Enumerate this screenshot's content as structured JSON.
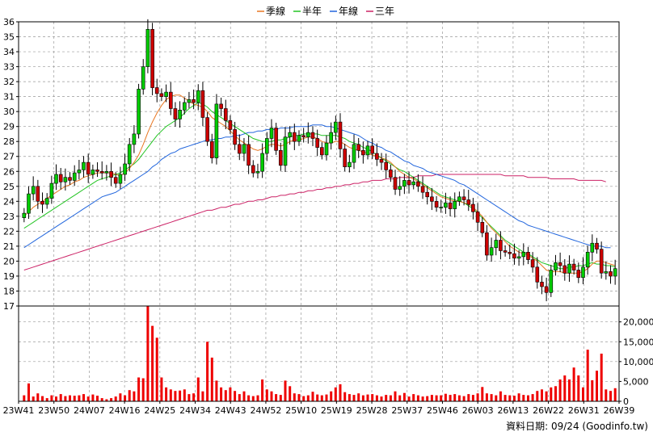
{
  "chart_data": {
    "type": "candlestick-with-volume",
    "legend": [
      {
        "name": "季線",
        "color": "#e87722"
      },
      {
        "name": "半年",
        "color": "#22c422"
      },
      {
        "name": "年線",
        "color": "#2266dd"
      },
      {
        "name": "三年",
        "color": "#cc2266"
      }
    ],
    "price_axis": {
      "min": 17,
      "max": 36,
      "ticks": [
        17,
        18,
        19,
        20,
        21,
        22,
        23,
        24,
        25,
        26,
        27,
        28,
        29,
        30,
        31,
        32,
        33,
        34,
        35,
        36
      ]
    },
    "volume_axis": {
      "min": 0,
      "max": 24000,
      "ticks": [
        0,
        5000,
        10000,
        15000,
        20000
      ],
      "tick_labels": [
        "0",
        "5,000",
        "10,000",
        "15,000",
        "20,000"
      ]
    },
    "x_tick_labels": [
      "23W41",
      "23W50",
      "24W07",
      "24W16",
      "24W25",
      "24W34",
      "24W43",
      "24W52",
      "25W10",
      "25W19",
      "25W28",
      "25W37",
      "25W46",
      "26W03",
      "26W13",
      "26W22",
      "26W31",
      "26W39"
    ],
    "grid": true,
    "legend_position": "top-center",
    "candle_up_color": "#00cc00",
    "candle_down_color": "#cc0000",
    "volume_color": "#ee0000",
    "closes": [
      23.2,
      24.5,
      25.0,
      24.0,
      23.8,
      24.2,
      25.2,
      25.8,
      25.3,
      25.6,
      25.4,
      25.9,
      26.1,
      26.6,
      25.8,
      26.1,
      26.0,
      25.9,
      26.0,
      25.6,
      25.2,
      25.8,
      26.5,
      27.8,
      28.5,
      31.5,
      33.0,
      35.5,
      31.6,
      31.2,
      31.0,
      31.3,
      30.2,
      29.5,
      30.1,
      30.6,
      30.8,
      30.6,
      31.4,
      29.6,
      28.0,
      26.9,
      30.5,
      30.2,
      29.4,
      28.8,
      27.8,
      27.2,
      27.8,
      26.4,
      25.9,
      26.0,
      27.2,
      28.2,
      28.9,
      27.4,
      26.4,
      28.3,
      28.6,
      28.0,
      28.4,
      28.3,
      28.6,
      28.2,
      27.6,
      27.1,
      27.9,
      28.6,
      29.3,
      27.5,
      26.3,
      26.6,
      27.8,
      27.4,
      27.1,
      27.7,
      27.2,
      26.8,
      26.6,
      26.1,
      25.6,
      24.8,
      25.0,
      25.4,
      25.1,
      25.3,
      25.0,
      24.6,
      24.3,
      24.0,
      23.6,
      23.6,
      23.9,
      23.5,
      24.0,
      24.3,
      24.1,
      23.8,
      23.3,
      22.6,
      21.9,
      20.4,
      20.9,
      21.4,
      20.7,
      20.6,
      20.5,
      20.2,
      20.3,
      20.6,
      20.1,
      19.6,
      18.6,
      18.3,
      17.9,
      19.4,
      19.9,
      19.7,
      19.2,
      19.8,
      19.4,
      18.9,
      19.6,
      20.6,
      21.2,
      20.8,
      19.2,
      19.3,
      19.0,
      19.5
    ],
    "quarter_line": [
      23.0,
      23.3,
      23.6,
      23.8,
      24.0,
      24.2,
      24.4,
      24.6,
      24.8,
      25.0,
      25.1,
      25.3,
      25.4,
      25.6,
      25.7,
      25.8,
      25.9,
      25.9,
      25.9,
      25.9,
      25.8,
      25.7,
      25.9,
      26.2,
      26.6,
      27.1,
      27.8,
      28.6,
      29.3,
      29.9,
      30.4,
      30.8,
      31.0,
      31.1,
      31.1,
      30.9,
      30.7,
      30.5,
      30.4,
      30.3,
      30.0,
      29.6,
      29.4,
      29.2,
      29.0,
      28.7,
      28.4,
      28.1,
      27.9,
      27.7,
      27.5,
      27.4,
      27.5,
      27.7,
      27.8,
      27.8,
      27.7,
      27.8,
      28.0,
      28.1,
      28.1,
      28.2,
      28.3,
      28.3,
      28.2,
      28.0,
      27.9,
      27.9,
      28.0,
      28.0,
      27.8,
      27.6,
      27.5,
      27.4,
      27.3,
      27.2,
      27.1,
      27.0,
      26.9,
      26.8,
      26.6,
      26.3,
      26.0,
      25.8,
      25.6,
      25.5,
      25.3,
      25.1,
      24.9,
      24.7,
      24.5,
      24.3,
      24.2,
      24.1,
      24.0,
      24.0,
      23.9,
      23.8,
      23.6,
      23.3,
      23.0,
      22.6,
      22.2,
      21.9,
      21.6,
      21.3,
      21.0,
      20.8,
      20.6,
      20.5,
      20.4,
      20.2,
      20.0,
      19.7,
      19.4,
      19.3,
      19.3,
      19.3,
      19.2,
      19.2,
      19.2,
      19.2,
      19.3,
      19.5,
      19.8,
      20.0,
      20.0,
      19.9,
      19.8,
      19.7
    ],
    "half_year_line": [
      22.2,
      22.4,
      22.6,
      22.8,
      23.0,
      23.2,
      23.4,
      23.6,
      23.8,
      24.0,
      24.2,
      24.4,
      24.6,
      24.8,
      25.0,
      25.2,
      25.4,
      25.5,
      25.6,
      25.7,
      25.8,
      25.9,
      26.1,
      26.3,
      26.5,
      26.8,
      27.2,
      27.6,
      28.0,
      28.4,
      28.7,
      29.0,
      29.2,
      29.4,
      29.6,
      29.9,
      30.2,
      30.4,
      30.6,
      30.5,
      30.3,
      30.0,
      29.8,
      29.6,
      29.4,
      29.2,
      29.0,
      28.8,
      28.6,
      28.4,
      28.2,
      28.1,
      28.0,
      28.0,
      28.0,
      28.1,
      28.1,
      28.2,
      28.3,
      28.4,
      28.4,
      28.5,
      28.5,
      28.5,
      28.5,
      28.4,
      28.4,
      28.4,
      28.4,
      28.3,
      28.2,
      28.0,
      27.9,
      27.8,
      27.6,
      27.5,
      27.3,
      27.1,
      26.9,
      26.7,
      26.5,
      26.3,
      26.1,
      26.0,
      25.8,
      25.6,
      25.4,
      25.2,
      25.0,
      24.8,
      24.6,
      24.4,
      24.3,
      24.2,
      24.1,
      24.0,
      23.9,
      23.7,
      23.5,
      23.2,
      22.9,
      22.6,
      22.3,
      22.0,
      21.7,
      21.4,
      21.2,
      21.0,
      20.8,
      20.6,
      20.5,
      20.3,
      20.1,
      19.9,
      19.8,
      19.7,
      19.6,
      19.5,
      19.5,
      19.6,
      19.6,
      19.7,
      19.7,
      19.8,
      19.9,
      19.8,
      19.8,
      19.7,
      19.7,
      19.6
    ],
    "year_line": [
      20.9,
      21.1,
      21.3,
      21.5,
      21.7,
      21.9,
      22.1,
      22.3,
      22.5,
      22.7,
      22.9,
      23.1,
      23.3,
      23.5,
      23.7,
      23.9,
      24.1,
      24.3,
      24.4,
      24.5,
      24.6,
      24.8,
      25.0,
      25.2,
      25.4,
      25.6,
      25.8,
      26.0,
      26.3,
      26.5,
      26.8,
      27.0,
      27.2,
      27.3,
      27.5,
      27.6,
      27.7,
      27.8,
      27.9,
      28.0,
      28.1,
      28.1,
      28.2,
      28.2,
      28.3,
      28.3,
      28.4,
      28.4,
      28.5,
      28.6,
      28.6,
      28.7,
      28.7,
      28.8,
      28.8,
      28.8,
      28.9,
      28.9,
      28.9,
      29.0,
      29.0,
      29.0,
      29.0,
      29.1,
      29.1,
      29.1,
      29.0,
      29.0,
      28.9,
      28.8,
      28.7,
      28.6,
      28.5,
      28.4,
      28.2,
      28.0,
      27.9,
      27.7,
      27.6,
      27.4,
      27.3,
      27.1,
      26.9,
      26.7,
      26.6,
      26.4,
      26.3,
      26.2,
      26.0,
      25.9,
      25.8,
      25.7,
      25.6,
      25.5,
      25.4,
      25.2,
      25.1,
      24.9,
      24.7,
      24.5,
      24.3,
      24.1,
      23.9,
      23.7,
      23.5,
      23.3,
      23.1,
      22.9,
      22.7,
      22.6,
      22.4,
      22.3,
      22.2,
      22.1,
      22.0,
      21.9,
      21.8,
      21.7,
      21.6,
      21.5,
      21.4,
      21.3,
      21.2,
      21.1,
      21.0,
      21.0,
      21.0,
      20.9,
      20.9
    ],
    "three_year_line": [
      19.4,
      19.5,
      19.6,
      19.7,
      19.8,
      19.9,
      20.0,
      20.1,
      20.2,
      20.3,
      20.4,
      20.5,
      20.6,
      20.7,
      20.8,
      20.9,
      21.0,
      21.1,
      21.2,
      21.3,
      21.4,
      21.5,
      21.6,
      21.7,
      21.8,
      21.9,
      22.0,
      22.1,
      22.2,
      22.3,
      22.4,
      22.5,
      22.6,
      22.7,
      22.8,
      22.9,
      23.0,
      23.1,
      23.2,
      23.3,
      23.4,
      23.4,
      23.5,
      23.6,
      23.6,
      23.7,
      23.8,
      23.8,
      23.9,
      24.0,
      24.0,
      24.1,
      24.1,
      24.2,
      24.3,
      24.3,
      24.4,
      24.4,
      24.5,
      24.5,
      24.6,
      24.6,
      24.7,
      24.7,
      24.8,
      24.8,
      24.9,
      24.9,
      25.0,
      25.0,
      25.1,
      25.1,
      25.2,
      25.2,
      25.3,
      25.3,
      25.4,
      25.4,
      25.4,
      25.5,
      25.5,
      25.5,
      25.6,
      25.6,
      25.6,
      25.6,
      25.7,
      25.7,
      25.7,
      25.7,
      25.8,
      25.8,
      25.8,
      25.8,
      25.8,
      25.8,
      25.8,
      25.8,
      25.8,
      25.8,
      25.8,
      25.8,
      25.8,
      25.8,
      25.8,
      25.7,
      25.7,
      25.7,
      25.7,
      25.7,
      25.6,
      25.6,
      25.6,
      25.6,
      25.6,
      25.5,
      25.5,
      25.5,
      25.5,
      25.5,
      25.5,
      25.4,
      25.4,
      25.4,
      25.4,
      25.4,
      25.4,
      25.3
    ],
    "volumes": [
      1500,
      4500,
      1200,
      2000,
      1300,
      800,
      1500,
      1200,
      1800,
      1300,
      1500,
      1400,
      1500,
      1800,
      1200,
      1700,
      1400,
      800,
      500,
      800,
      1200,
      2000,
      1500,
      2800,
      2500,
      6000,
      5800,
      24000,
      19000,
      16000,
      6000,
      3500,
      3000,
      2600,
      2700,
      3000,
      1800,
      2000,
      6000,
      2500,
      15000,
      11000,
      5200,
      3500,
      2800,
      3500,
      2600,
      1800,
      2500,
      1500,
      1300,
      1500,
      5500,
      3000,
      2500,
      1800,
      1600,
      5200,
      3800,
      2000,
      1800,
      1300,
      1500,
      2400,
      1700,
      1500,
      1700,
      2500,
      3500,
      4300,
      2300,
      1800,
      1600,
      2000,
      1500,
      1700,
      1800,
      1500,
      1200,
      1600,
      1500,
      2500,
      1500,
      2100,
      1200,
      1800,
      1500,
      1200,
      1300,
      1600,
      1500,
      1500,
      1900,
      1600,
      1800,
      1500,
      1300,
      1800,
      1600,
      2000,
      3600,
      2000,
      1800,
      1500,
      2500,
      1600,
      1500,
      1400,
      2000,
      1600,
      1500,
      1800,
      2600,
      3000,
      2500,
      3500,
      3800,
      5500,
      6500,
      5500,
      8500,
      6500,
      3500,
      13000,
      5300,
      7700,
      12000,
      3000,
      2600,
      3300
    ]
  },
  "source_label": "資料日期: 09/24 (Goodinfo.tw)"
}
